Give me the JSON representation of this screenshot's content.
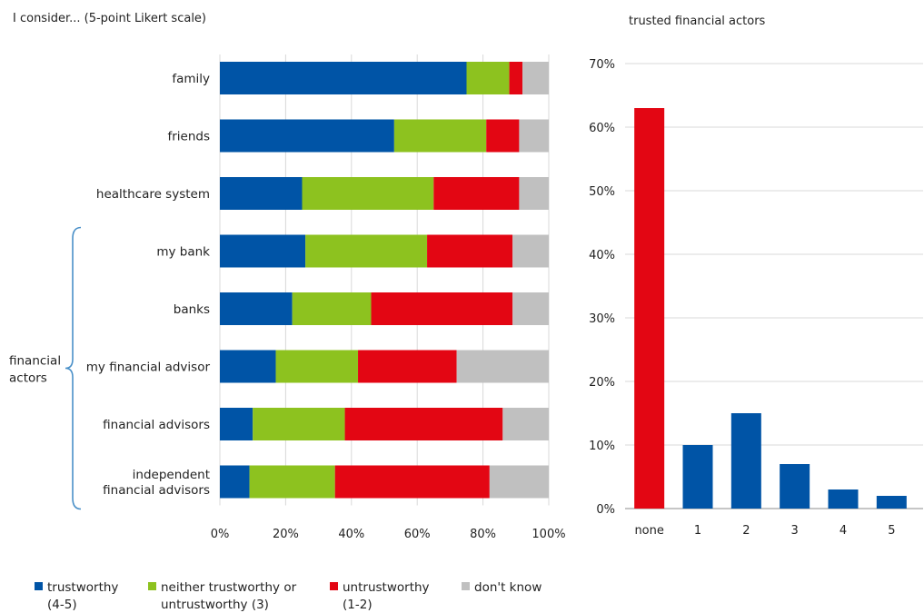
{
  "colors": {
    "trustworthy": "#0054a6",
    "neither": "#8dc21f",
    "untrustworthy": "#e30613",
    "dont_know": "#c0c0c0",
    "grid": "#d9d9d9",
    "axis": "#8c8c8c",
    "brace": "#4a90c8"
  },
  "chart_data": [
    {
      "type": "bar",
      "orientation": "horizontal",
      "stacked": true,
      "title": "I consider... (5-point Likert scale)",
      "categories": [
        "family",
        "friends",
        "healthcare system",
        "my bank",
        "banks",
        "my financial advisor",
        "financial advisors",
        "independent financial advisors"
      ],
      "category_lines": [
        [
          "family"
        ],
        [
          "friends"
        ],
        [
          "healthcare system"
        ],
        [
          "my bank"
        ],
        [
          "banks"
        ],
        [
          "my financial advisor"
        ],
        [
          "financial advisors"
        ],
        [
          "independent",
          "financial advisors"
        ]
      ],
      "group_label": [
        "financial",
        "actors"
      ],
      "group_start": 3,
      "group_end": 7,
      "series": [
        {
          "key": "trustworthy",
          "name_lines": [
            "trustworthy",
            "(4-5)"
          ],
          "values": [
            75,
            53,
            25,
            26,
            22,
            17,
            10,
            9
          ]
        },
        {
          "key": "neither",
          "name_lines": [
            "neither trustworthy or",
            "untrustworthy (3)"
          ],
          "values": [
            13,
            28,
            40,
            37,
            24,
            25,
            28,
            26
          ]
        },
        {
          "key": "untrustworthy",
          "name_lines": [
            "untrustworthy",
            "(1-2)"
          ],
          "values": [
            4,
            10,
            26,
            26,
            43,
            30,
            48,
            47
          ]
        },
        {
          "key": "dont_know",
          "name_lines": [
            "don't know"
          ],
          "values": [
            8,
            9,
            9,
            11,
            11,
            28,
            14,
            18
          ]
        }
      ],
      "xlim": [
        0,
        100
      ],
      "xticks": [
        0,
        20,
        40,
        60,
        80,
        100
      ],
      "xtick_labels": [
        "0%",
        "20%",
        "40%",
        "60%",
        "80%",
        "100%"
      ],
      "grid": true,
      "legend_position": "bottom"
    },
    {
      "type": "bar",
      "title": "trusted financial actors",
      "categories": [
        "none",
        "1",
        "2",
        "3",
        "4",
        "5"
      ],
      "values": [
        63,
        10,
        15,
        7,
        3,
        2
      ],
      "bar_color_keys": [
        "untrustworthy",
        "trustworthy",
        "trustworthy",
        "trustworthy",
        "trustworthy",
        "trustworthy"
      ],
      "ylim": [
        0,
        70
      ],
      "yticks": [
        0,
        10,
        20,
        30,
        40,
        50,
        60,
        70
      ],
      "ytick_labels": [
        "0%",
        "10%",
        "20%",
        "30%",
        "40%",
        "50%",
        "60%",
        "70%"
      ],
      "grid": true
    }
  ]
}
